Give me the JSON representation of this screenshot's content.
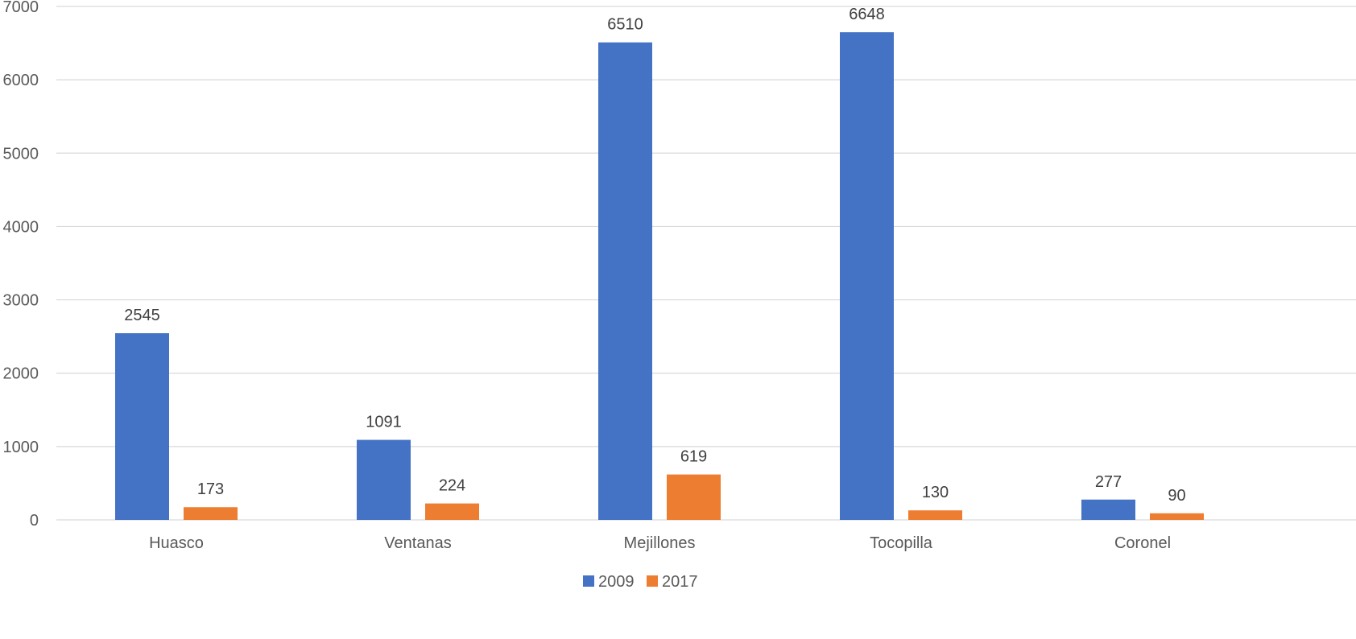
{
  "chart_data": {
    "type": "bar",
    "title": "",
    "xlabel": "",
    "ylabel": "",
    "categories": [
      "Huasco",
      "Ventanas",
      "Mejillones",
      "Tocopilla",
      "Coronel"
    ],
    "series": [
      {
        "name": "2009",
        "color": "#4472c4",
        "values": [
          2545,
          1091,
          6510,
          6648,
          277
        ]
      },
      {
        "name": "2017",
        "color": "#ed7d31",
        "values": [
          173,
          224,
          619,
          130,
          90
        ]
      }
    ],
    "ylim": [
      0,
      7000
    ],
    "yticks": [
      0,
      1000,
      2000,
      3000,
      4000,
      5000,
      6000,
      7000
    ],
    "grid": true,
    "legend_position": "bottom-center",
    "data_labels": true
  }
}
